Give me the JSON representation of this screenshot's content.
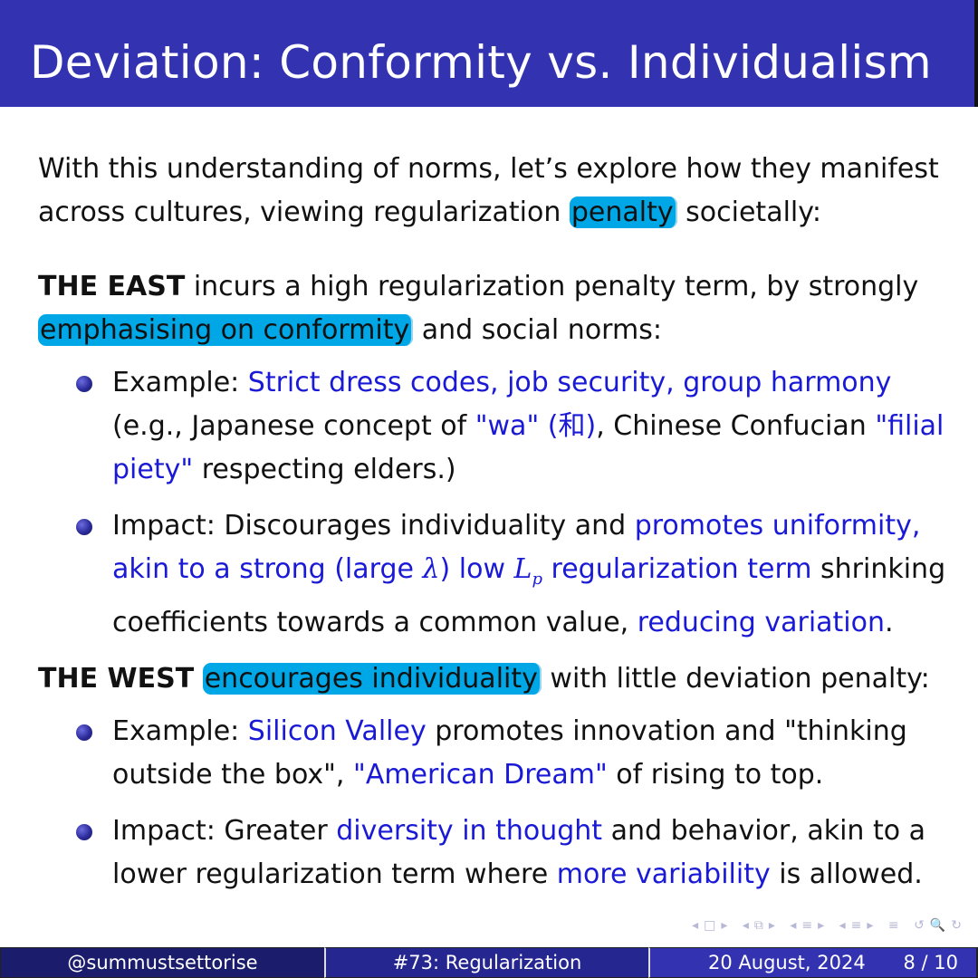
{
  "title": "Deviation: Conformity vs. Individualism",
  "intro": {
    "before": "With this understanding of norms, let’s explore how they manifest across cultures, viewing regularization ",
    "highlight": "penalty",
    "after": " societally:"
  },
  "east": {
    "label": "THE EAST",
    "text1": " incurs a high regularization penalty term, by strongly ",
    "highlight": "emphasising on conformity",
    "text2": " and social norms:",
    "example": {
      "label": "Example: ",
      "blue1": "Strict dress codes, job security, group harmony",
      "text1": " (e.g., Japanese concept of ",
      "blue2": "\"wa\" (和)",
      "text2": ", Chinese Confucian ",
      "blue3": "\"filial piety\"",
      "text3": " respecting elders.)"
    },
    "impact": {
      "label": "Impact: ",
      "text1": "Discourages individuality and ",
      "blue1": "promotes uniformity, akin to a strong (large ",
      "lambda": "λ",
      "blue1b": ") low ",
      "lp": "L",
      "lp_sub": "p",
      "blue1c": " regularization term",
      "text2": " shrinking coefficients towards a common value, ",
      "blue2": "reducing variation",
      "text3": "."
    }
  },
  "west": {
    "label": "THE WEST",
    "highlight": "encourages individuality",
    "text": " with little deviation penalty:",
    "example": {
      "label": "Example: ",
      "blue1": "Silicon Valley",
      "text1": " promotes innovation and \"thinking outside the box\", ",
      "blue2": "\"American Dream\"",
      "text2": " of rising to top."
    },
    "impact": {
      "label": "Impact: ",
      "text1": "Greater ",
      "blue1": "diversity in thought",
      "text2": " and behavior, akin to a lower regularization term where ",
      "blue2": "more variability",
      "text3": " is allowed."
    }
  },
  "footer": {
    "author": "@summustsettorise",
    "topic": "#73: Regularization",
    "date": "20 August, 2024",
    "page": "8 / 10"
  },
  "colors": {
    "title_bar": "#3333b2",
    "highlight": "#00a7e6",
    "emphasis_text": "#1a1ad6"
  }
}
